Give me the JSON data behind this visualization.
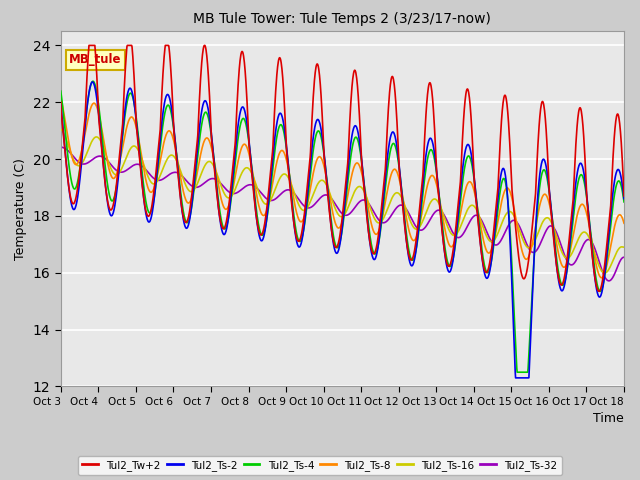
{
  "title": "MB Tule Tower: Tule Temps 2 (3/23/17-now)",
  "xlabel": "Time",
  "ylabel": "Temperature (C)",
  "ylim": [
    12,
    24.5
  ],
  "yticks": [
    12,
    14,
    16,
    18,
    20,
    22,
    24
  ],
  "annotation_text": "MB_tule",
  "annotation_color": "#cc0000",
  "annotation_bg": "#ffffc0",
  "annotation_edge": "#ccaa00",
  "xtick_labels": [
    "Oct 3",
    "Oct 4",
    "Oct 5",
    "Oct 6",
    "Oct 7",
    "Oct 8",
    "Oct 9",
    "Oct 10",
    "Oct 11",
    "Oct 12",
    "Oct 13",
    "Oct 14",
    "Oct 15",
    "Oct 16",
    "Oct 17",
    "Oct 18"
  ],
  "series_colors": {
    "Tul2_Tw+2": "#dd0000",
    "Tul2_Ts-2": "#0000ee",
    "Tul2_Ts-4": "#00cc00",
    "Tul2_Ts-8": "#ff8800",
    "Tul2_Ts-16": "#cccc00",
    "Tul2_Ts-32": "#9900bb"
  },
  "series_lw": 1.2
}
